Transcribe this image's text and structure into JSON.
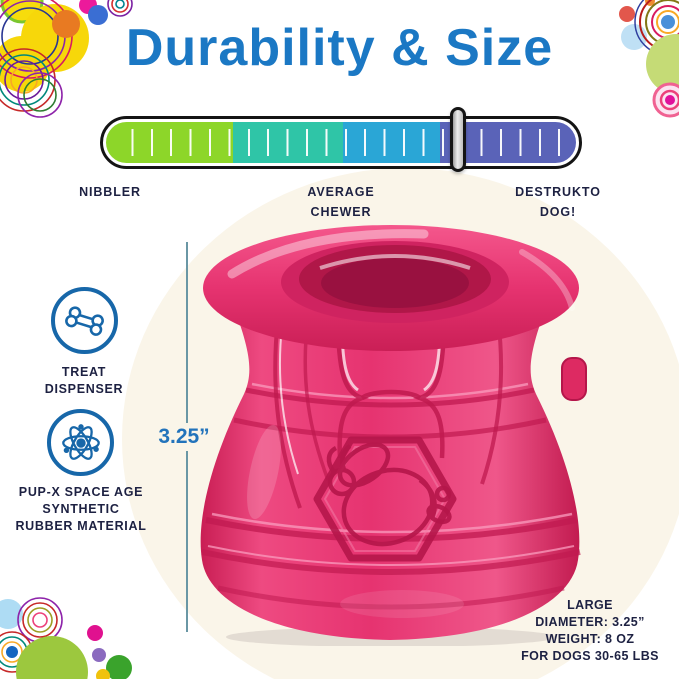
{
  "title": {
    "text": "Durability & Size",
    "color": "#1b78c4"
  },
  "meter": {
    "segments": [
      {
        "zone": "nibbler",
        "color": "#8dd629",
        "width_pct": 27
      },
      {
        "zone": "average-chewer",
        "color": "#2fc5a7",
        "width_pct": 23.5
      },
      {
        "zone": "power-chewer",
        "color": "#2aa6d6",
        "width_pct": 20.5
      },
      {
        "zone": "destrukto-dog",
        "color": "#5a63b8",
        "width_pct": 29
      }
    ],
    "slider_pct": 74.5,
    "scale_labels": [
      "NIBBLER",
      "AVERAGE\nCHEWER",
      "DESTRUKTO\nDOG!"
    ]
  },
  "features": [
    {
      "icon": "bone-icon",
      "label": "TREAT\nDISPENSER"
    },
    {
      "icon": "atom-icon",
      "label": "PUP-X SPACE AGE\nSYNTHETIC\nRUBBER MATERIAL"
    }
  ],
  "measurement": {
    "height_label": "3.25”"
  },
  "size_info": {
    "lines": [
      "LARGE",
      "DIAMETER: 3.25”",
      "WEIGHT: 8 OZ",
      "FOR DOGS 30-65 LBS"
    ]
  },
  "product": {
    "name": "pink honey pot dog chew toy",
    "main_color": "#e63370"
  },
  "colors": {
    "accent_blue": "#1b78c4",
    "icon_blue": "#1767a9",
    "text_navy": "#1d2142",
    "backdrop_cream": "#faf5e9"
  }
}
